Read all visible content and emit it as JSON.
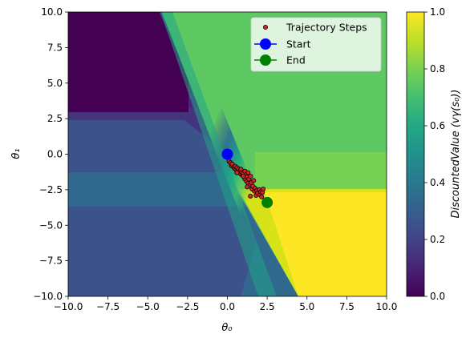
{
  "chart_data": {
    "type": "heatmap",
    "title": "",
    "xlabel": "θ₀",
    "ylabel": "θ₁",
    "xlim": [
      -10,
      10
    ],
    "ylim": [
      -10,
      10
    ],
    "x_ticks": [
      -10,
      -7.5,
      -5,
      -2.5,
      0,
      2.5,
      5,
      7.5,
      10
    ],
    "x_tick_labels": [
      "−10.0",
      "−7.5",
      "−5.0",
      "−2.5",
      "0.0",
      "2.5",
      "5.0",
      "7.5",
      "10.0"
    ],
    "y_ticks": [
      10,
      7.5,
      5,
      2.5,
      0,
      -2.5,
      -5,
      -7.5,
      -10
    ],
    "y_tick_labels": [
      "10.0",
      "7.5",
      "5.0",
      "2.5",
      "0.0",
      "−2.5",
      "−5.0",
      "−7.5",
      "−10.0"
    ],
    "colormap": "viridis",
    "colorbar": {
      "label": "DiscountedValue (vγ(s₀))",
      "range": [
        0,
        1
      ],
      "ticks": [
        0,
        0.2,
        0.4,
        0.6,
        0.8,
        1.0
      ],
      "tick_labels": [
        "0.0",
        "0.2",
        "0.4",
        "0.6",
        "0.8",
        "1.0"
      ]
    },
    "legend": {
      "placement": "top-right",
      "entries": [
        "Trajectory Steps",
        "Start",
        "End"
      ]
    },
    "series": [
      {
        "name": "Trajectory Steps",
        "marker": "dot",
        "color": "#d62728",
        "edge_color": "#000000",
        "points": [
          [
            0.1,
            -0.5
          ],
          [
            0.2,
            -0.6
          ],
          [
            0.25,
            -0.8
          ],
          [
            0.3,
            -0.7
          ],
          [
            0.4,
            -0.9
          ],
          [
            0.45,
            -1.0
          ],
          [
            0.5,
            -0.85
          ],
          [
            0.55,
            -1.1
          ],
          [
            0.6,
            -0.95
          ],
          [
            0.65,
            -1.2
          ],
          [
            0.7,
            -1.05
          ],
          [
            0.75,
            -1.3
          ],
          [
            0.8,
            -1.15
          ],
          [
            0.85,
            -1.4
          ],
          [
            0.9,
            -1.25
          ],
          [
            0.95,
            -1.5
          ],
          [
            1.0,
            -1.35
          ],
          [
            1.05,
            -1.6
          ],
          [
            1.1,
            -1.2
          ],
          [
            1.1,
            -1.75
          ],
          [
            1.15,
            -1.45
          ],
          [
            1.2,
            -1.9
          ],
          [
            1.25,
            -1.6
          ],
          [
            1.3,
            -2.05
          ],
          [
            1.3,
            -1.3
          ],
          [
            1.35,
            -1.75
          ],
          [
            1.4,
            -2.2
          ],
          [
            1.45,
            -1.55
          ],
          [
            1.5,
            -2.0
          ],
          [
            1.55,
            -2.45
          ],
          [
            1.6,
            -2.25
          ],
          [
            1.65,
            -1.85
          ],
          [
            1.7,
            -2.6
          ],
          [
            1.75,
            -2.4
          ],
          [
            1.8,
            -2.9
          ],
          [
            1.85,
            -2.55
          ],
          [
            1.9,
            -2.75
          ],
          [
            2.0,
            -2.5
          ],
          [
            2.05,
            -2.85
          ],
          [
            2.1,
            -2.65
          ],
          [
            2.15,
            -3.0
          ],
          [
            2.2,
            -2.7
          ],
          [
            2.25,
            -2.45
          ],
          [
            1.25,
            -2.3
          ],
          [
            1.45,
            -2.95
          ],
          [
            1.0,
            -1.55
          ],
          [
            0.85,
            -1.05
          ],
          [
            0.6,
            -1.3
          ]
        ]
      },
      {
        "name": "Start",
        "marker": "circle",
        "color": "#0000ff",
        "points": [
          [
            0.0,
            0.0
          ]
        ]
      },
      {
        "name": "End",
        "marker": "circle",
        "color": "#008000",
        "points": [
          [
            2.5,
            -3.4
          ]
        ]
      }
    ]
  }
}
